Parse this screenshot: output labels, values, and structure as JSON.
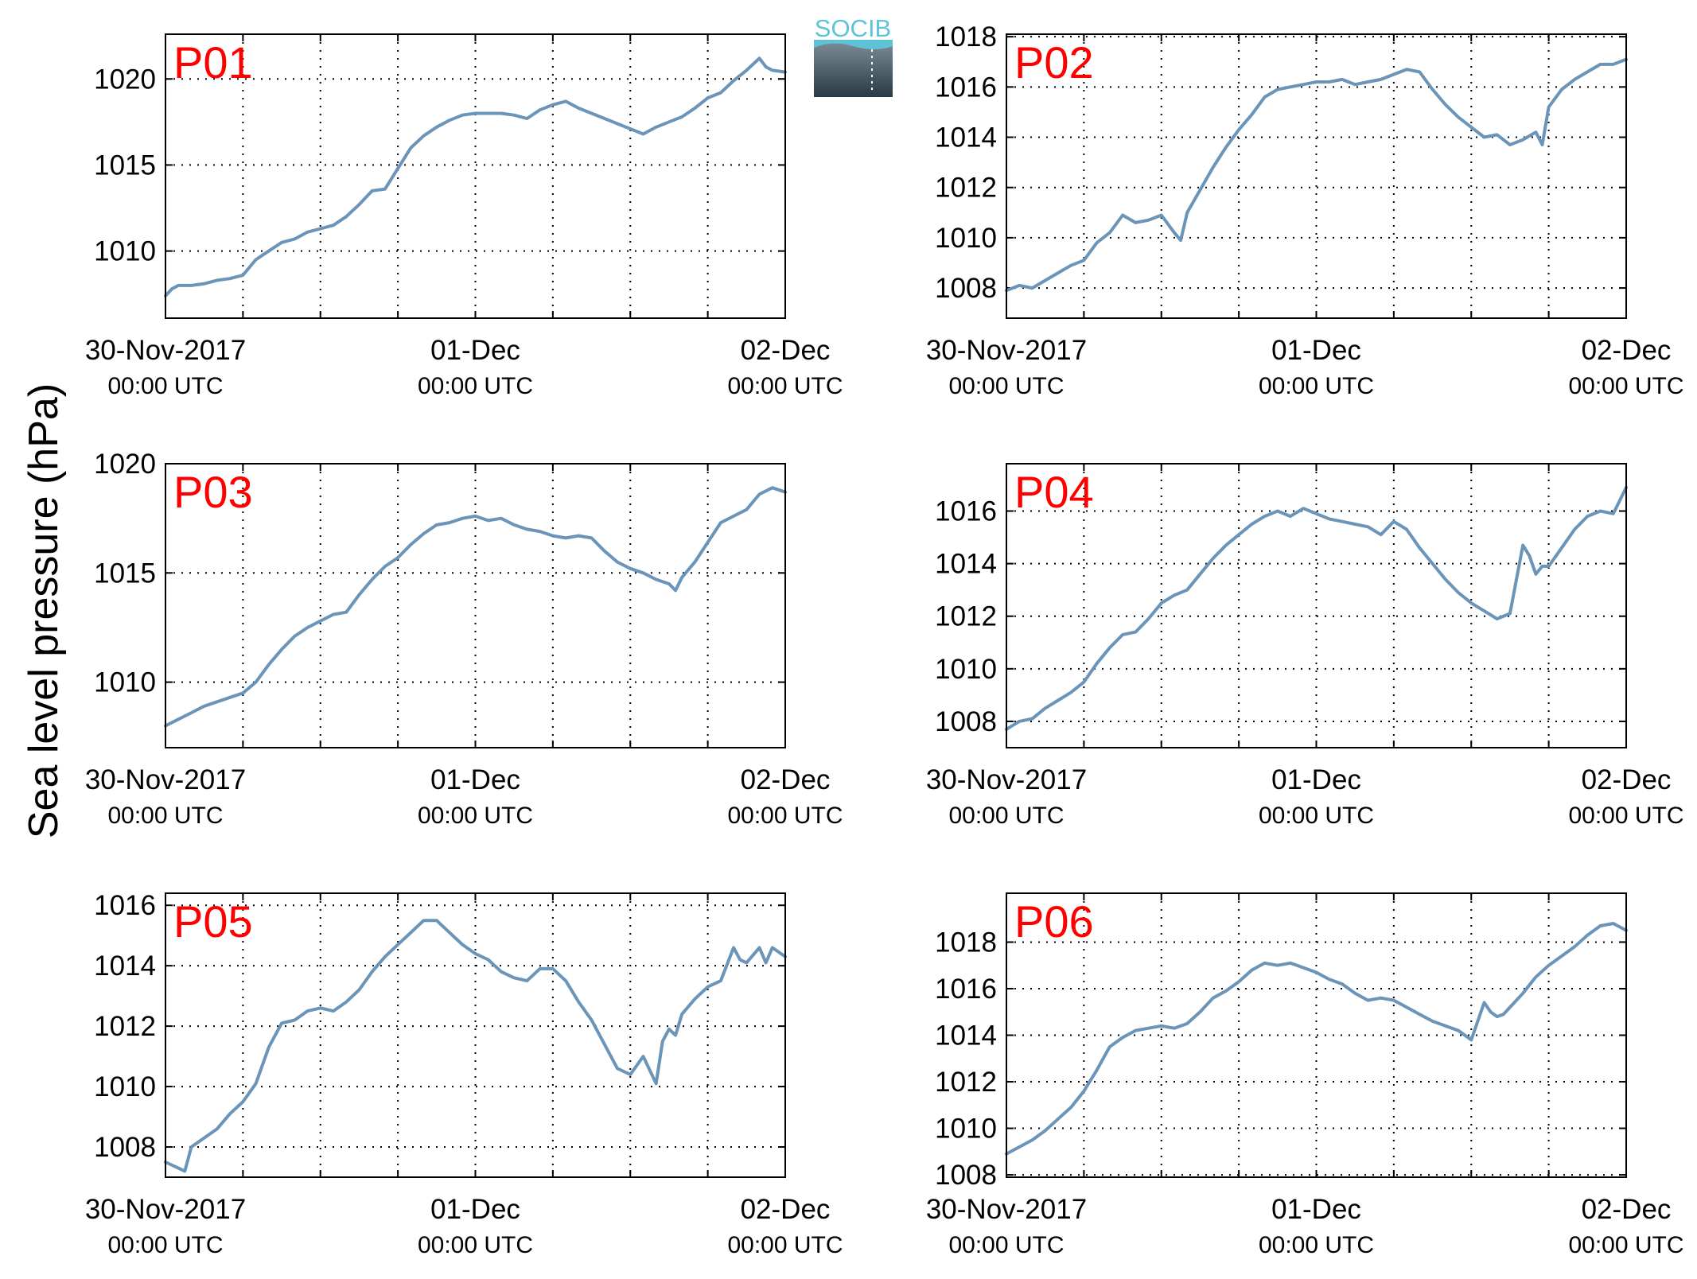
{
  "figure": {
    "ylabel": "Sea level pressure (hPa)",
    "logo_text": "SOCIB",
    "x_tick_labels": [
      {
        "date": "30-Nov-2017",
        "time": "00:00 UTC"
      },
      {
        "date": "01-Dec",
        "time": "00:00 UTC"
      },
      {
        "date": "02-Dec",
        "time": "00:00 UTC"
      }
    ]
  },
  "colors": {
    "line": "#6a94b8",
    "panel_label": "#ff0000",
    "grid": "#000000",
    "logo_top": "#5ec3d6",
    "logo_bottom": "#2a3a45"
  },
  "chart_data": [
    {
      "type": "line",
      "label": "P01",
      "xlim": [
        0,
        48
      ],
      "ylim": [
        1006.1,
        1022.6
      ],
      "yticks": [
        1010,
        1015,
        1020
      ],
      "x": [
        0,
        0.5,
        1,
        2,
        3,
        4,
        5,
        6,
        7,
        8,
        9,
        10,
        11,
        12,
        13,
        14,
        15,
        16,
        17,
        18,
        19,
        20,
        21,
        22,
        23,
        24,
        25,
        26,
        27,
        28,
        29,
        30,
        31,
        32,
        33,
        34,
        35,
        36,
        37,
        38,
        39,
        40,
        41,
        42,
        43,
        44,
        45,
        46,
        46.5,
        47,
        48
      ],
      "y": [
        1007.4,
        1007.8,
        1008.0,
        1008.0,
        1008.1,
        1008.3,
        1008.4,
        1008.6,
        1009.5,
        1010.0,
        1010.5,
        1010.7,
        1011.1,
        1011.3,
        1011.5,
        1012.0,
        1012.7,
        1013.5,
        1013.6,
        1014.8,
        1016.0,
        1016.7,
        1017.2,
        1017.6,
        1017.9,
        1018.0,
        1018.0,
        1018.0,
        1017.9,
        1017.7,
        1018.2,
        1018.5,
        1018.7,
        1018.3,
        1018.0,
        1017.7,
        1017.4,
        1017.1,
        1016.8,
        1017.2,
        1017.5,
        1017.8,
        1018.3,
        1018.9,
        1019.2,
        1019.9,
        1020.5,
        1021.2,
        1020.7,
        1020.5,
        1020.4
      ]
    },
    {
      "type": "line",
      "label": "P02",
      "xlim": [
        0,
        48
      ],
      "ylim": [
        1006.8,
        1018.1
      ],
      "yticks": [
        1008,
        1010,
        1012,
        1014,
        1016,
        1018
      ],
      "x": [
        0,
        1,
        2,
        3,
        4,
        5,
        6,
        7,
        8,
        9,
        10,
        11,
        12,
        13,
        13.5,
        14,
        15,
        16,
        17,
        18,
        19,
        20,
        21,
        22,
        23,
        24,
        25,
        26,
        27,
        28,
        29,
        30,
        31,
        32,
        33,
        34,
        35,
        36,
        37,
        38,
        39,
        40,
        41,
        41.5,
        42,
        43,
        44,
        45,
        46,
        47,
        48
      ],
      "y": [
        1007.9,
        1008.1,
        1008.0,
        1008.3,
        1008.6,
        1008.9,
        1009.1,
        1009.8,
        1010.2,
        1010.9,
        1010.6,
        1010.7,
        1010.9,
        1010.2,
        1009.9,
        1011.0,
        1011.9,
        1012.8,
        1013.6,
        1014.3,
        1014.9,
        1015.6,
        1015.9,
        1016.0,
        1016.1,
        1016.2,
        1016.2,
        1016.3,
        1016.1,
        1016.2,
        1016.3,
        1016.5,
        1016.7,
        1016.6,
        1015.9,
        1015.3,
        1014.8,
        1014.4,
        1014.0,
        1014.1,
        1013.7,
        1013.9,
        1014.2,
        1013.7,
        1015.2,
        1015.9,
        1016.3,
        1016.6,
        1016.9,
        1016.9,
        1017.1
      ]
    },
    {
      "type": "line",
      "label": "P03",
      "xlim": [
        0,
        48
      ],
      "ylim": [
        1007.0,
        1020.0
      ],
      "yticks": [
        1010,
        1015,
        1020
      ],
      "x": [
        0,
        1,
        2,
        3,
        4,
        5,
        6,
        7,
        8,
        9,
        10,
        11,
        12,
        13,
        14,
        15,
        16,
        17,
        18,
        19,
        20,
        21,
        22,
        23,
        24,
        25,
        26,
        27,
        28,
        29,
        30,
        31,
        32,
        33,
        34,
        35,
        36,
        37,
        38,
        39,
        39.5,
        40,
        41,
        42,
        43,
        44,
        45,
        46,
        47,
        48
      ],
      "y": [
        1008.0,
        1008.3,
        1008.6,
        1008.9,
        1009.1,
        1009.3,
        1009.5,
        1010.0,
        1010.8,
        1011.5,
        1012.1,
        1012.5,
        1012.8,
        1013.1,
        1013.2,
        1014.0,
        1014.7,
        1015.3,
        1015.7,
        1016.3,
        1016.8,
        1017.2,
        1017.3,
        1017.5,
        1017.6,
        1017.4,
        1017.5,
        1017.2,
        1017.0,
        1016.9,
        1016.7,
        1016.6,
        1016.7,
        1016.6,
        1016.0,
        1015.5,
        1015.2,
        1015.0,
        1014.7,
        1014.5,
        1014.2,
        1014.8,
        1015.5,
        1016.4,
        1017.3,
        1017.6,
        1017.9,
        1018.6,
        1018.9,
        1018.7
      ]
    },
    {
      "type": "line",
      "label": "P04",
      "xlim": [
        0,
        48
      ],
      "ylim": [
        1007.0,
        1017.8
      ],
      "yticks": [
        1008,
        1010,
        1012,
        1014,
        1016
      ],
      "x": [
        0,
        1,
        2,
        3,
        4,
        5,
        6,
        7,
        8,
        9,
        10,
        11,
        12,
        13,
        14,
        15,
        16,
        17,
        18,
        19,
        20,
        21,
        22,
        23,
        24,
        25,
        26,
        27,
        28,
        29,
        30,
        31,
        32,
        33,
        34,
        35,
        36,
        37,
        38,
        39,
        40,
        40.5,
        41,
        41.5,
        42,
        43,
        44,
        45,
        46,
        47,
        47.5,
        48
      ],
      "y": [
        1007.7,
        1008.0,
        1008.1,
        1008.5,
        1008.8,
        1009.1,
        1009.5,
        1010.2,
        1010.8,
        1011.3,
        1011.4,
        1011.9,
        1012.5,
        1012.8,
        1013.0,
        1013.6,
        1014.2,
        1014.7,
        1015.1,
        1015.5,
        1015.8,
        1016.0,
        1015.8,
        1016.1,
        1015.9,
        1015.7,
        1015.6,
        1015.5,
        1015.4,
        1015.1,
        1015.6,
        1015.3,
        1014.6,
        1014.0,
        1013.4,
        1012.9,
        1012.5,
        1012.2,
        1011.9,
        1012.1,
        1014.7,
        1014.3,
        1013.6,
        1013.9,
        1013.9,
        1014.6,
        1015.3,
        1015.8,
        1016.0,
        1015.9,
        1016.4,
        1016.9
      ]
    },
    {
      "type": "line",
      "label": "P05",
      "xlim": [
        0,
        48
      ],
      "ylim": [
        1007.0,
        1016.4
      ],
      "yticks": [
        1008,
        1010,
        1012,
        1014,
        1016
      ],
      "x": [
        0,
        1,
        1.5,
        2,
        3,
        4,
        5,
        6,
        7,
        8,
        9,
        10,
        11,
        12,
        13,
        14,
        15,
        16,
        17,
        18,
        19,
        20,
        21,
        22,
        23,
        24,
        25,
        26,
        27,
        28,
        29,
        30,
        31,
        32,
        33,
        34,
        35,
        36,
        37,
        38,
        38.5,
        39,
        39.5,
        40,
        41,
        42,
        43,
        44,
        44.5,
        45,
        46,
        46.5,
        47,
        48
      ],
      "y": [
        1007.5,
        1007.3,
        1007.2,
        1008.0,
        1008.3,
        1008.6,
        1009.1,
        1009.5,
        1010.1,
        1011.3,
        1012.1,
        1012.2,
        1012.5,
        1012.6,
        1012.5,
        1012.8,
        1013.2,
        1013.8,
        1014.3,
        1014.7,
        1015.1,
        1015.5,
        1015.5,
        1015.1,
        1014.7,
        1014.4,
        1014.2,
        1013.8,
        1013.6,
        1013.5,
        1013.9,
        1013.9,
        1013.5,
        1012.8,
        1012.2,
        1011.4,
        1010.6,
        1010.4,
        1011.0,
        1010.1,
        1011.5,
        1011.9,
        1011.7,
        1012.4,
        1012.9,
        1013.3,
        1013.5,
        1014.6,
        1014.2,
        1014.1,
        1014.6,
        1014.1,
        1014.6,
        1014.3
      ]
    },
    {
      "type": "line",
      "label": "P06",
      "xlim": [
        0,
        48
      ],
      "ylim": [
        1007.9,
        1020.1
      ],
      "yticks": [
        1008,
        1010,
        1012,
        1014,
        1016,
        1018
      ],
      "x": [
        0,
        1,
        2,
        3,
        4,
        5,
        6,
        7,
        8,
        9,
        10,
        11,
        12,
        13,
        14,
        15,
        16,
        17,
        18,
        19,
        20,
        21,
        22,
        23,
        24,
        25,
        26,
        27,
        28,
        29,
        30,
        31,
        32,
        33,
        34,
        35,
        36,
        37,
        37.5,
        38,
        38.5,
        39,
        40,
        41,
        42,
        43,
        44,
        45,
        46,
        47,
        48
      ],
      "y": [
        1008.9,
        1009.2,
        1009.5,
        1009.9,
        1010.4,
        1010.9,
        1011.6,
        1012.5,
        1013.5,
        1013.9,
        1014.2,
        1014.3,
        1014.4,
        1014.3,
        1014.5,
        1015.0,
        1015.6,
        1015.9,
        1016.3,
        1016.8,
        1017.1,
        1017.0,
        1017.1,
        1016.9,
        1016.7,
        1016.4,
        1016.2,
        1015.8,
        1015.5,
        1015.6,
        1015.5,
        1015.2,
        1014.9,
        1014.6,
        1014.4,
        1014.2,
        1013.8,
        1015.4,
        1015.0,
        1014.8,
        1014.9,
        1015.2,
        1015.8,
        1016.5,
        1017.0,
        1017.4,
        1017.8,
        1018.3,
        1018.7,
        1018.8,
        1018.5
      ]
    }
  ]
}
